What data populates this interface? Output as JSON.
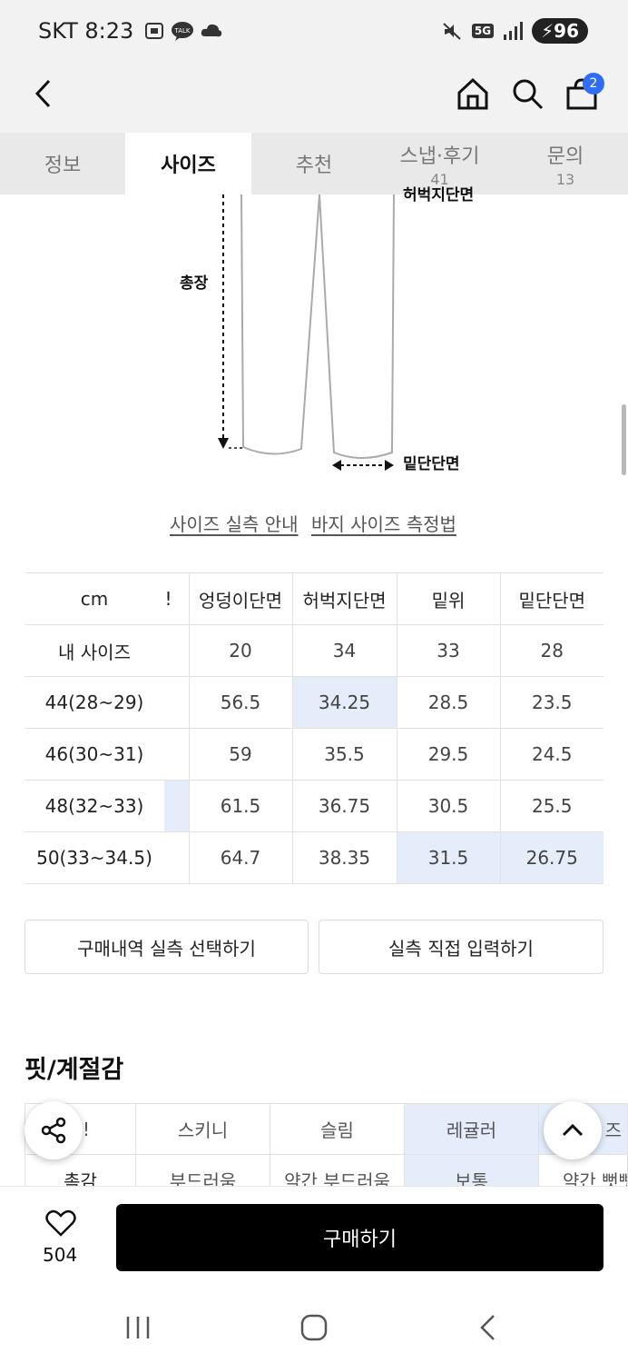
{
  "status_bar": {
    "carrier_time": "SKT 8:23",
    "battery": "96",
    "network": "5G"
  },
  "header": {
    "cart_count": "2"
  },
  "tabs": [
    {
      "label": "정보",
      "sub": ""
    },
    {
      "label": "사이즈",
      "sub": ""
    },
    {
      "label": "추천",
      "sub": ""
    },
    {
      "label": "스냅·후기",
      "sub": "41"
    },
    {
      "label": "문의",
      "sub": "13"
    }
  ],
  "diagram": {
    "top_label": "허벅지단면",
    "length_label": "총장",
    "hem_label": "밑단단면"
  },
  "links": {
    "size_guide": "사이즈 실측 안내",
    "measure_guide": "바지 사이즈 측정법"
  },
  "size_table": {
    "headers": [
      "cm",
      "!",
      "엉덩이단면",
      "허벅지단면",
      "밑위",
      "밑단단면"
    ],
    "rows": [
      {
        "label": "내 사이즈",
        "values": [
          "",
          "20",
          "34",
          "33",
          "28"
        ]
      },
      {
        "label": "44(28~29)",
        "values": [
          "",
          "56.5",
          "34.25",
          "28.5",
          "23.5"
        ]
      },
      {
        "label": "46(30~31)",
        "values": [
          "",
          "59",
          "35.5",
          "29.5",
          "24.5"
        ]
      },
      {
        "label": "48(32~33)",
        "values": [
          "",
          "61.5",
          "36.75",
          "30.5",
          "25.5"
        ]
      },
      {
        "label": "50(33~34.5)",
        "values": [
          "",
          "64.7",
          "38.35",
          "31.5",
          "26.75"
        ]
      }
    ]
  },
  "buttons": {
    "history": "구매내역 실측 선택하기",
    "manual": "실측 직접 입력하기",
    "buy": "구매하기"
  },
  "fit": {
    "title": "핏/계절감",
    "row1": [
      "!",
      "스키니",
      "슬림",
      "레귤러",
      "즈"
    ],
    "row2": [
      "촉감",
      "부드러움",
      "약간 부드러움",
      "보통",
      "약간 뻣뻣"
    ]
  },
  "like": {
    "count": "504"
  },
  "colors": {
    "highlight": "#e5edfb",
    "badge": "#2f6df6",
    "buy_button": "#000000"
  }
}
